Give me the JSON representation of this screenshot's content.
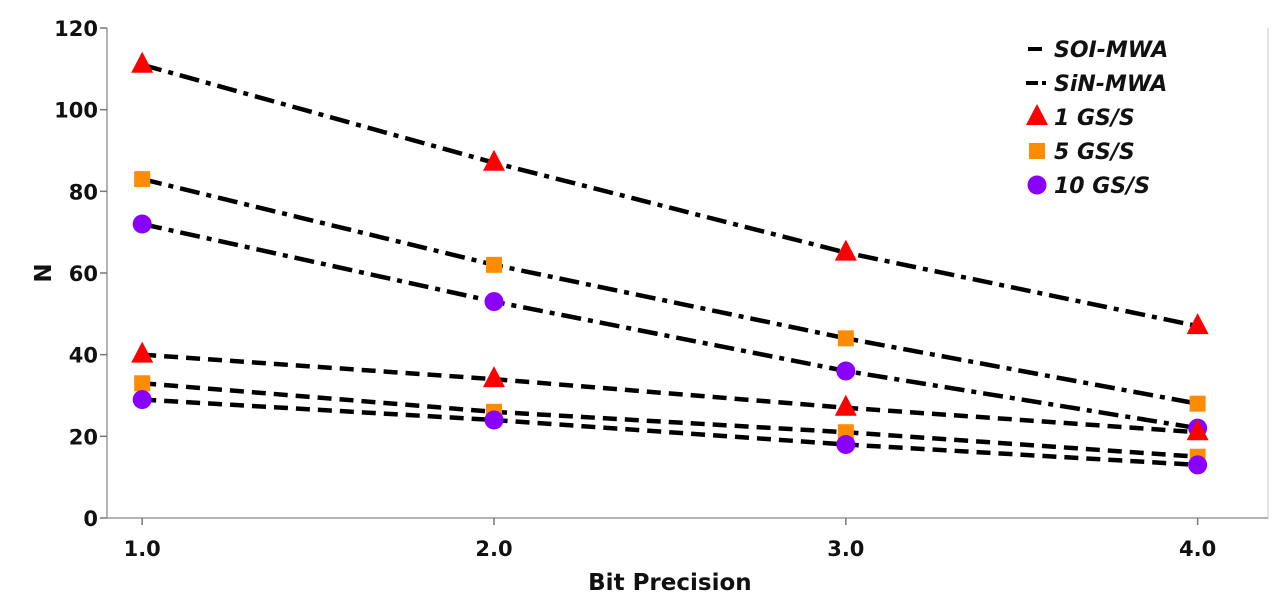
{
  "chart_data": {
    "type": "line",
    "xlabel": "Bit Precision",
    "ylabel": "N",
    "x": [
      1.0,
      2.0,
      3.0,
      4.0
    ],
    "x_tick_labels": [
      "1.0",
      "2.0",
      "3.0",
      "4.0"
    ],
    "y_ticks": [
      0,
      20,
      40,
      60,
      80,
      100,
      120
    ],
    "xlim": [
      0.9,
      4.2
    ],
    "ylim": [
      0,
      120
    ],
    "grid": false,
    "legend_position": "top-right",
    "legend": [
      {
        "label": "SOI-MWA",
        "kind": "line",
        "style": "dashed"
      },
      {
        "label": "SiN-MWA",
        "kind": "line",
        "style": "dash-dot"
      },
      {
        "label": "1 GS/S",
        "kind": "marker",
        "marker": "triangle",
        "color": "#ff0000"
      },
      {
        "label": "5 GS/S",
        "kind": "marker",
        "marker": "square",
        "color": "#ff8c00"
      },
      {
        "label": "10 GS/S",
        "kind": "marker",
        "marker": "circle",
        "color": "#8a00ff"
      }
    ],
    "series": [
      {
        "name": "SiN-MWA",
        "rate": "1 GS/S",
        "line_style": "dash-dot",
        "marker": "triangle",
        "color": "#ff0000",
        "values": [
          111,
          87,
          65,
          47
        ]
      },
      {
        "name": "SiN-MWA",
        "rate": "5 GS/S",
        "line_style": "dash-dot",
        "marker": "square",
        "color": "#ff8c00",
        "values": [
          83,
          62,
          44,
          28
        ]
      },
      {
        "name": "SiN-MWA",
        "rate": "10 GS/S",
        "line_style": "dash-dot",
        "marker": "circle",
        "color": "#8a00ff",
        "values": [
          72,
          53,
          36,
          22
        ]
      },
      {
        "name": "SOI-MWA",
        "rate": "1 GS/S",
        "line_style": "dashed",
        "marker": "triangle",
        "color": "#ff0000",
        "values": [
          40,
          34,
          27,
          21
        ]
      },
      {
        "name": "SOI-MWA",
        "rate": "5 GS/S",
        "line_style": "dashed",
        "marker": "square",
        "color": "#ff8c00",
        "values": [
          33,
          26,
          21,
          15
        ]
      },
      {
        "name": "SOI-MWA",
        "rate": "10 GS/S",
        "line_style": "dashed",
        "marker": "circle",
        "color": "#8a00ff",
        "values": [
          29,
          24,
          18,
          13
        ]
      }
    ]
  }
}
